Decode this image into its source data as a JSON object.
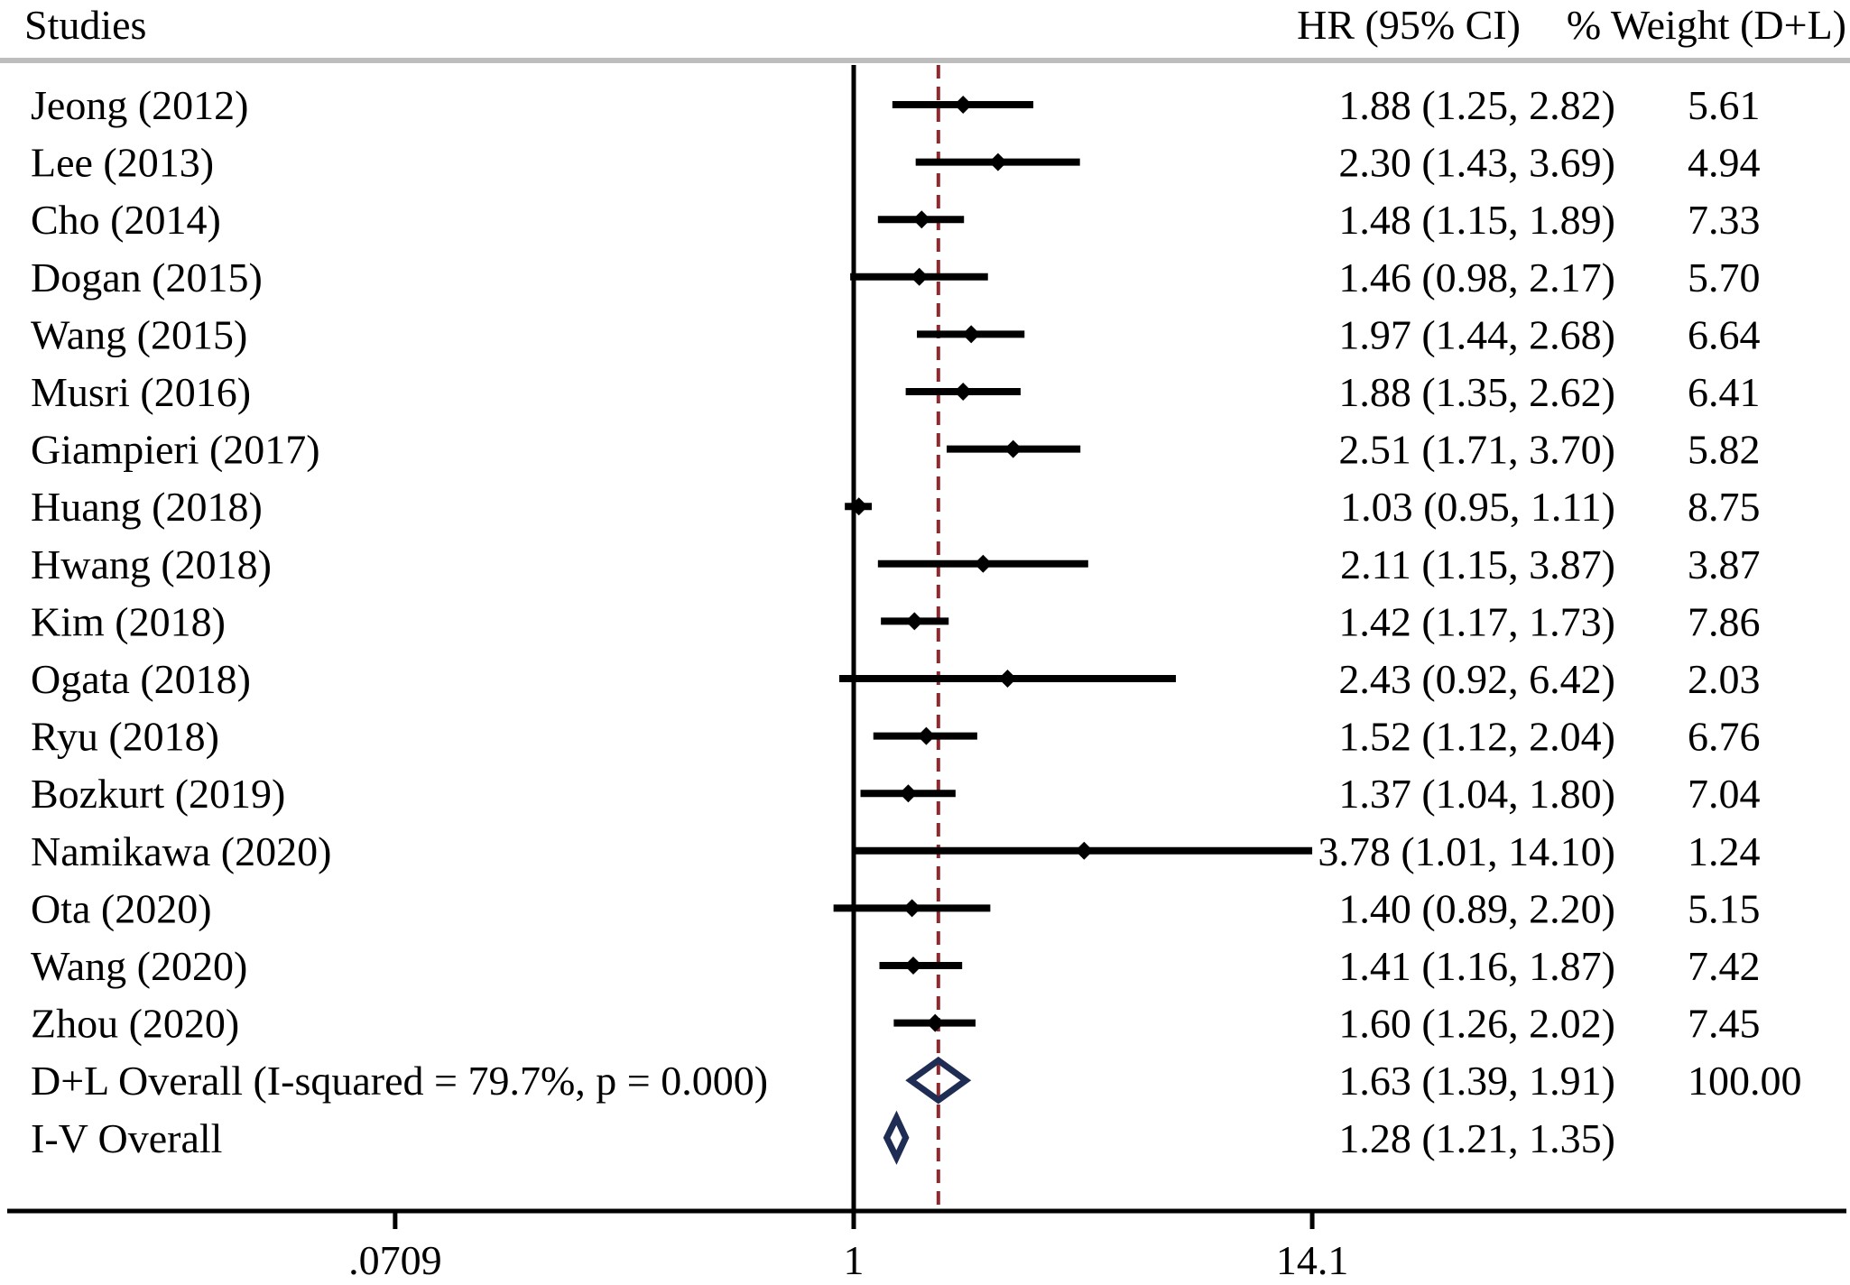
{
  "chart_data": {
    "type": "forest",
    "headers": {
      "studies": "Studies",
      "hr": "HR (95% CI)",
      "weight": "% Weight (D+L)"
    },
    "axis": {
      "scale": "log",
      "range": [
        0.0709,
        14.1
      ],
      "ticks": [
        {
          "value": 0.0709,
          "label": ".0709"
        },
        {
          "value": 1,
          "label": "1"
        },
        {
          "value": 14.1,
          "label": "14.1"
        }
      ],
      "null_line": 1,
      "reference_line": 1.63
    },
    "colors": {
      "marks": "#000000",
      "overall_diamond": "#1f2d55",
      "reference_line": "#8b2a2f",
      "header_rule": "#bdbdbd"
    },
    "studies": [
      {
        "name": "Jeong (2012)",
        "hr": 1.88,
        "lo": 1.25,
        "hi": 2.82,
        "ci_text": "1.88 (1.25, 2.82)",
        "weight": "5.61"
      },
      {
        "name": "Lee (2013)",
        "hr": 2.3,
        "lo": 1.43,
        "hi": 3.69,
        "ci_text": "2.30 (1.43, 3.69)",
        "weight": "4.94"
      },
      {
        "name": "Cho (2014)",
        "hr": 1.48,
        "lo": 1.15,
        "hi": 1.89,
        "ci_text": "1.48 (1.15, 1.89)",
        "weight": "7.33"
      },
      {
        "name": "Dogan (2015)",
        "hr": 1.46,
        "lo": 0.98,
        "hi": 2.17,
        "ci_text": "1.46 (0.98, 2.17)",
        "weight": "5.70"
      },
      {
        "name": "Wang (2015)",
        "hr": 1.97,
        "lo": 1.44,
        "hi": 2.68,
        "ci_text": "1.97 (1.44, 2.68)",
        "weight": "6.64"
      },
      {
        "name": "Musri (2016)",
        "hr": 1.88,
        "lo": 1.35,
        "hi": 2.62,
        "ci_text": "1.88 (1.35, 2.62)",
        "weight": "6.41"
      },
      {
        "name": "Giampieri (2017)",
        "hr": 2.51,
        "lo": 1.71,
        "hi": 3.7,
        "ci_text": "2.51 (1.71, 3.70)",
        "weight": "5.82"
      },
      {
        "name": "Huang (2018)",
        "hr": 1.03,
        "lo": 0.95,
        "hi": 1.11,
        "ci_text": "1.03 (0.95, 1.11)",
        "weight": "8.75"
      },
      {
        "name": "Hwang (2018)",
        "hr": 2.11,
        "lo": 1.15,
        "hi": 3.87,
        "ci_text": "2.11 (1.15, 3.87)",
        "weight": "3.87"
      },
      {
        "name": "Kim (2018)",
        "hr": 1.42,
        "lo": 1.17,
        "hi": 1.73,
        "ci_text": "1.42 (1.17, 1.73)",
        "weight": "7.86"
      },
      {
        "name": "Ogata (2018)",
        "hr": 2.43,
        "lo": 0.92,
        "hi": 6.42,
        "ci_text": "2.43 (0.92, 6.42)",
        "weight": "2.03"
      },
      {
        "name": "Ryu (2018)",
        "hr": 1.52,
        "lo": 1.12,
        "hi": 2.04,
        "ci_text": "1.52 (1.12, 2.04)",
        "weight": "6.76"
      },
      {
        "name": "Bozkurt (2019)",
        "hr": 1.37,
        "lo": 1.04,
        "hi": 1.8,
        "ci_text": "1.37 (1.04, 1.80)",
        "weight": "7.04"
      },
      {
        "name": "Namikawa (2020)",
        "hr": 3.78,
        "lo": 1.01,
        "hi": 14.1,
        "ci_text": "3.78 (1.01, 14.10)",
        "weight": "1.24"
      },
      {
        "name": "Ota (2020)",
        "hr": 1.4,
        "lo": 0.89,
        "hi": 2.2,
        "ci_text": "1.40 (0.89, 2.20)",
        "weight": "5.15"
      },
      {
        "name": "Wang (2020)",
        "hr": 1.41,
        "lo": 1.16,
        "hi": 1.87,
        "ci_text": "1.41 (1.16, 1.87)",
        "weight": "7.42"
      },
      {
        "name": "Zhou (2020)",
        "hr": 1.6,
        "lo": 1.26,
        "hi": 2.02,
        "ci_text": "1.60 (1.26, 2.02)",
        "weight": "7.45"
      }
    ],
    "overall": [
      {
        "name": "D+L Overall  (I-squared = 79.7%, p = 0.000)",
        "hr": 1.63,
        "lo": 1.39,
        "hi": 1.91,
        "ci_text": "1.63 (1.39, 1.91)",
        "weight": "100.00"
      },
      {
        "name": "I-V Overall",
        "hr": 1.28,
        "lo": 1.21,
        "hi": 1.35,
        "ci_text": "1.28 (1.21, 1.35)",
        "weight": ""
      }
    ]
  }
}
